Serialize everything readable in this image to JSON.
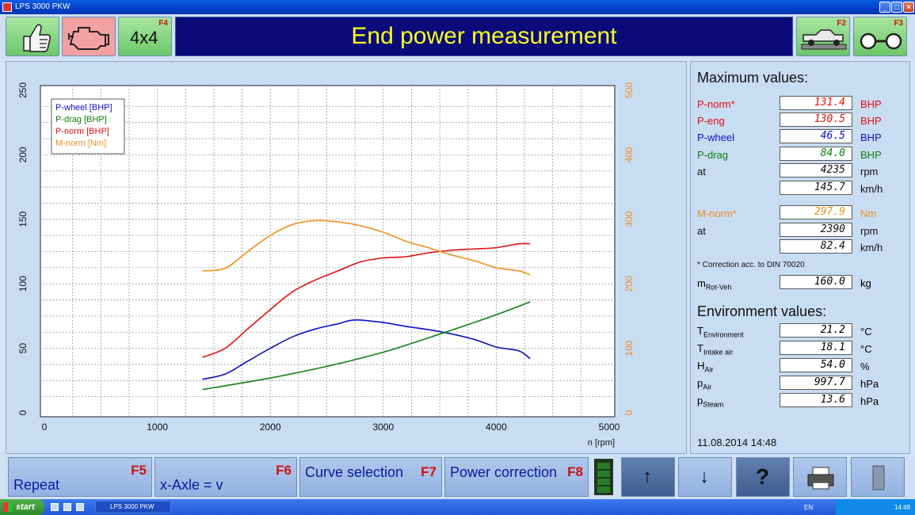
{
  "window": {
    "title": "LPS 3000 PKW",
    "minimize": "_",
    "restore": "□",
    "close": "✕"
  },
  "toolbar": {
    "button1_icon": "thumbs-up-icon",
    "button2_icon": "engine-icon",
    "button3_label": "4x4",
    "button3_fkey": "F4",
    "title": "End power measurement",
    "button4_icon": "vehicle-on-dyno-icon",
    "button4_fkey": "F2",
    "button5_icon": "roller-icon",
    "button5_fkey": "F3"
  },
  "chart_data": {
    "type": "line",
    "xlabel": "n [rpm]",
    "x_ticks": [
      "0",
      "1000",
      "2000",
      "3000",
      "4000",
      "5000"
    ],
    "xlim": [
      0,
      5000
    ],
    "y_left_ticks": [
      "0",
      "50",
      "100",
      "150",
      "200",
      "250"
    ],
    "ylim_left": [
      0,
      250
    ],
    "y_right_ticks": [
      "0",
      "100",
      "200",
      "300",
      "400",
      "500"
    ],
    "ylim_right": [
      0,
      500
    ],
    "grid": true,
    "legend_position": "top-left",
    "series": [
      {
        "name": "P-wheel [BHP]",
        "axis": "left",
        "color": "#1010c8",
        "x": [
          1400,
          1600,
          1800,
          2000,
          2200,
          2400,
          2600,
          2750,
          3000,
          3200,
          3500,
          3800,
          4000,
          4200,
          4300
        ],
        "y": [
          26,
          30,
          40,
          50,
          59,
          65,
          69,
          72,
          70,
          67,
          63,
          57,
          51,
          48,
          42
        ]
      },
      {
        "name": "P-drag [BHP]",
        "axis": "left",
        "color": "#108010",
        "x": [
          1400,
          2000,
          2500,
          3000,
          3500,
          4000,
          4300
        ],
        "y": [
          18,
          27,
          36,
          47,
          61,
          76,
          86
        ]
      },
      {
        "name": "P-norm [BHP]",
        "axis": "left",
        "color": "#e01010",
        "x": [
          1400,
          1600,
          1800,
          2000,
          2200,
          2400,
          2600,
          2800,
          3000,
          3200,
          3400,
          3600,
          3800,
          4000,
          4200,
          4300
        ],
        "y": [
          43,
          50,
          65,
          80,
          94,
          103,
          110,
          117,
          120,
          121,
          124,
          126,
          127,
          128,
          131,
          131
        ]
      },
      {
        "name": "M-norm [Nm]",
        "axis": "right",
        "color": "#f09020",
        "x": [
          1400,
          1600,
          1800,
          2000,
          2200,
          2390,
          2600,
          2800,
          3000,
          3200,
          3400,
          3600,
          3800,
          4000,
          4200,
          4300
        ],
        "y": [
          220,
          224,
          250,
          275,
          292,
          298,
          296,
          290,
          280,
          266,
          256,
          245,
          236,
          225,
          220,
          214
        ]
      }
    ]
  },
  "maximum": {
    "title": "Maximum values:",
    "rows": [
      {
        "label": "P-norm*",
        "value": "131.4",
        "unit": "BHP",
        "color": "#e01010"
      },
      {
        "label": "P-eng",
        "value": "130.5",
        "unit": "BHP",
        "color": "#e01010"
      },
      {
        "label": "P-wheel",
        "value": "46.5",
        "unit": "BHP",
        "color": "#1010c8"
      },
      {
        "label": "P-drag",
        "value": "84.0",
        "unit": "BHP",
        "color": "#108010"
      },
      {
        "label": "at",
        "value": "4235",
        "unit": "rpm",
        "color": "#101010"
      },
      {
        "label": "",
        "value": "145.7",
        "unit": "km/h",
        "color": "#101010"
      },
      {
        "label": "M-norm*",
        "value": "297.9",
        "unit": "Nm",
        "color": "#f09020"
      },
      {
        "label": "at",
        "value": "2390",
        "unit": "rpm",
        "color": "#101010"
      },
      {
        "label": "",
        "value": "82.4",
        "unit": "km/h",
        "color": "#101010"
      }
    ],
    "note": "* Correction acc. to DIN 70020",
    "mass_label": "m",
    "mass_sub": "Rot-Veh",
    "mass_value": "160.0",
    "mass_unit": "kg"
  },
  "environment": {
    "title": "Environment values:",
    "rows": [
      {
        "label": "T",
        "sub": "Environment",
        "value": "21.2",
        "unit": "°C"
      },
      {
        "label": "T",
        "sub": "Intake air",
        "value": "18.1",
        "unit": "°C"
      },
      {
        "label": "H",
        "sub": "Air",
        "value": "54.0",
        "unit": "%"
      },
      {
        "label": "p",
        "sub": "Air",
        "value": "997.7",
        "unit": "hPa"
      },
      {
        "label": "p",
        "sub": "Steam",
        "value": "13.6",
        "unit": "hPa"
      }
    ]
  },
  "datetime": "11.08.2014  14:48",
  "bottom": {
    "repeat": "Repeat",
    "repeat_fkey": "F5",
    "xaxle": "x-Axle = v",
    "xaxle_fkey": "F6",
    "curve": "Curve selection",
    "curve_fkey": "F7",
    "power": "Power correction",
    "power_fkey": "F8",
    "up_icon": "↑",
    "down_icon": "↓",
    "help_icon": "?"
  },
  "taskbar": {
    "start": "start",
    "task": "LPS 3000 PKW",
    "lang": "EN",
    "clock": "14:49"
  }
}
